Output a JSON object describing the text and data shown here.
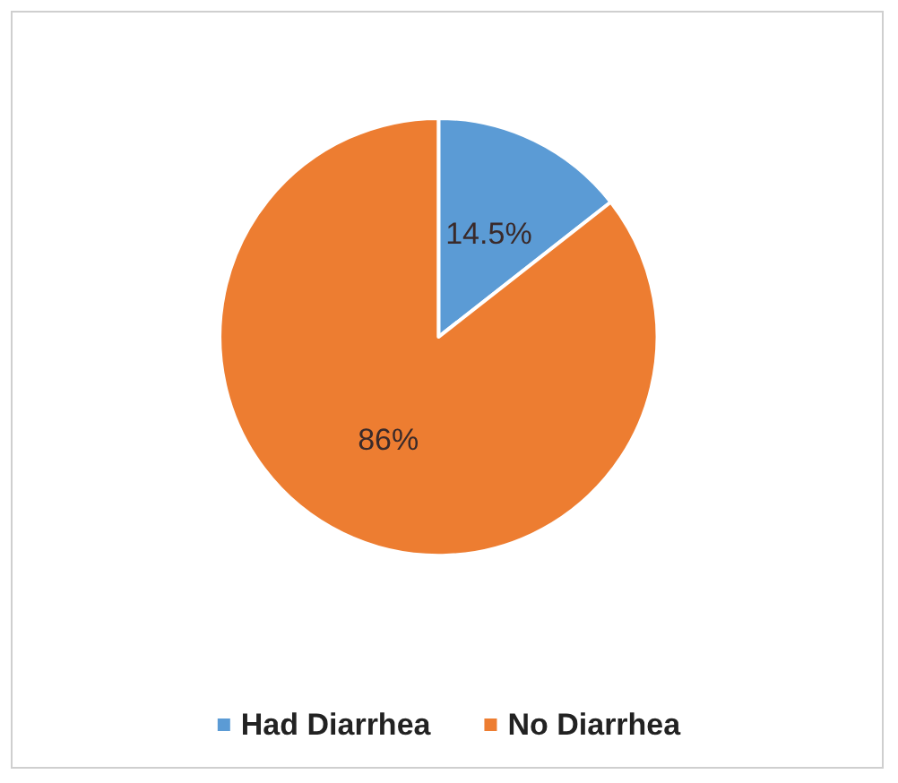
{
  "chart_data": {
    "type": "pie",
    "categories": [
      "Had Diarrhea",
      "No Diarrhea"
    ],
    "values": [
      14.5,
      86
    ],
    "colors": [
      "#5b9bd5",
      "#ed7d31"
    ],
    "value_labels": [
      "14.5%",
      "86%"
    ],
    "legend": "bottom"
  }
}
